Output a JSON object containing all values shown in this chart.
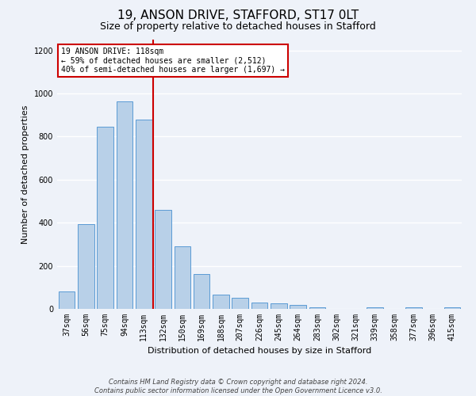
{
  "title": "19, ANSON DRIVE, STAFFORD, ST17 0LT",
  "subtitle": "Size of property relative to detached houses in Stafford",
  "xlabel": "Distribution of detached houses by size in Stafford",
  "ylabel": "Number of detached properties",
  "categories": [
    "37sqm",
    "56sqm",
    "75sqm",
    "94sqm",
    "113sqm",
    "132sqm",
    "150sqm",
    "169sqm",
    "188sqm",
    "207sqm",
    "226sqm",
    "245sqm",
    "264sqm",
    "283sqm",
    "302sqm",
    "321sqm",
    "339sqm",
    "358sqm",
    "377sqm",
    "396sqm",
    "415sqm"
  ],
  "values": [
    80,
    395,
    845,
    965,
    880,
    460,
    290,
    160,
    65,
    50,
    30,
    25,
    18,
    8,
    0,
    0,
    8,
    0,
    8,
    0,
    8
  ],
  "bar_color": "#b8d0e8",
  "bar_edge_color": "#5b9bd5",
  "vline_x": 4.5,
  "vline_color": "#cc0000",
  "annotation_text": "19 ANSON DRIVE: 118sqm\n← 59% of detached houses are smaller (2,512)\n40% of semi-detached houses are larger (1,697) →",
  "annotation_box_color": "#ffffff",
  "annotation_box_edge": "#cc0000",
  "ylim": [
    0,
    1250
  ],
  "yticks": [
    0,
    200,
    400,
    600,
    800,
    1000,
    1200
  ],
  "footer_line1": "Contains HM Land Registry data © Crown copyright and database right 2024.",
  "footer_line2": "Contains public sector information licensed under the Open Government Licence v3.0.",
  "bg_color": "#eef2f9",
  "grid_color": "#ffffff",
  "title_fontsize": 11,
  "subtitle_fontsize": 9,
  "xlabel_fontsize": 8,
  "ylabel_fontsize": 8,
  "tick_fontsize": 7,
  "annotation_fontsize": 7,
  "footer_fontsize": 6
}
